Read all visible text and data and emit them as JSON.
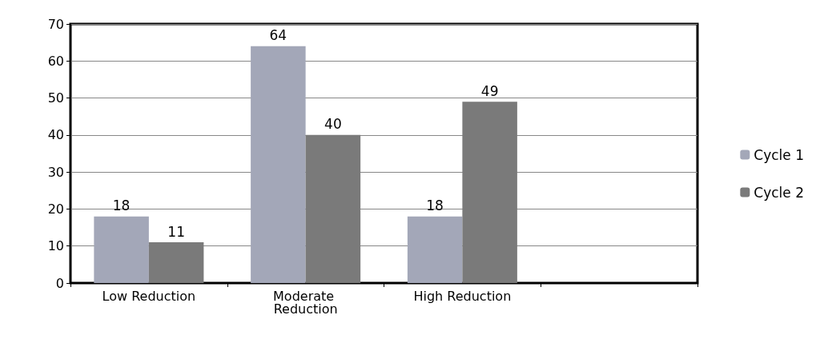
{
  "chart_data": {
    "type": "bar",
    "categories": [
      "Low Reduction",
      "Moderate Reduction",
      "High Reduction",
      null
    ],
    "series": [
      {
        "name": "Cycle 1",
        "color": "#a3a7b8",
        "values": [
          18,
          64,
          18,
          null
        ]
      },
      {
        "name": "Cycle 2",
        "color": "#7a7a7a",
        "values": [
          11,
          40,
          49,
          null
        ]
      }
    ],
    "ylim": [
      0,
      70
    ],
    "yticks": [
      0,
      10,
      20,
      30,
      40,
      50,
      60,
      70
    ],
    "grid": "y",
    "legend": "right",
    "data_labels": true
  }
}
